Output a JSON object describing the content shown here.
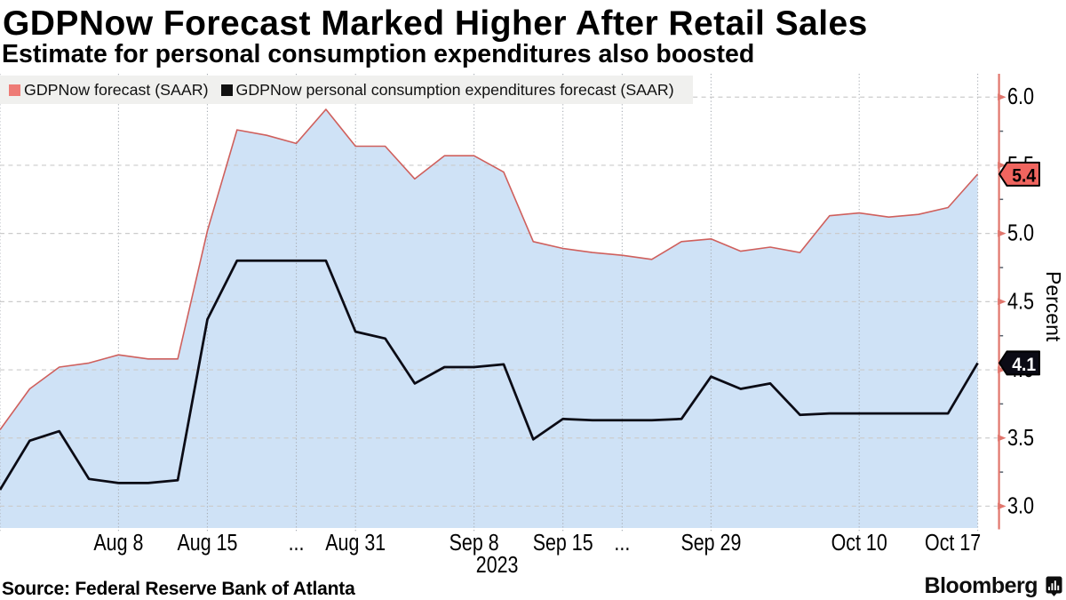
{
  "header": {
    "title": "GDPNow Forecast Marked Higher After Retail Sales",
    "subtitle": "Estimate for personal consumption expenditures also boosted"
  },
  "legend": {
    "items": [
      {
        "label": "GDPNow forecast (SAAR)",
        "color": "#ee7b76"
      },
      {
        "label": "GDPNow personal consumption expenditures forecast (SAAR)",
        "color": "#111111"
      }
    ]
  },
  "chart_data": {
    "type": "area",
    "title": "GDPNow Forecast Marked Higher After Retail Sales",
    "ylabel": "Percent",
    "ylim": [
      2.84,
      6.171
    ],
    "y_major_ticks": [
      3.0,
      3.5,
      4.0,
      4.5,
      5.0,
      5.5,
      6.0
    ],
    "y_tick_labels": [
      "3.0",
      "3.5",
      "4.0",
      "4.5",
      "5.0",
      "5.5",
      "6.0"
    ],
    "y_minor_step": 0.25,
    "x_ticks": [
      {
        "index": 0,
        "label": ""
      },
      {
        "index": 4,
        "label": "Aug 8"
      },
      {
        "index": 7,
        "label": "Aug 15"
      },
      {
        "index": 10,
        "label": "..."
      },
      {
        "index": 12,
        "label": "Aug 31"
      },
      {
        "index": 16,
        "label": "Sep 8"
      },
      {
        "index": 19,
        "label": "Sep 15"
      },
      {
        "index": 21,
        "label": "..."
      },
      {
        "index": 24,
        "label": "Sep 29"
      },
      {
        "index": 29,
        "label": "Oct 10"
      },
      {
        "index": 33,
        "label": "Oct 17"
      }
    ],
    "year_label": {
      "index": 16,
      "label": "2023"
    },
    "series": [
      {
        "name": "GDPNow forecast (SAAR)",
        "type": "area",
        "color": "#cf605d",
        "fill": "#cfe2f6",
        "marker_label": "5.4",
        "marker_fill": "#f0655f",
        "marker_text_color": "#000000",
        "values": [
          3.56,
          3.86,
          4.02,
          4.05,
          4.11,
          4.08,
          4.08,
          5.02,
          5.76,
          5.72,
          5.66,
          5.91,
          5.64,
          5.64,
          5.4,
          5.57,
          5.57,
          5.45,
          4.94,
          4.89,
          4.86,
          4.84,
          4.81,
          4.94,
          4.96,
          4.87,
          4.9,
          4.86,
          5.13,
          5.15,
          5.12,
          5.14,
          5.19,
          5.435
        ]
      },
      {
        "name": "GDPNow personal consumption expenditures forecast (SAAR)",
        "type": "line",
        "color": "#0b0b15",
        "marker_label": "4.1",
        "marker_fill": "#0b0b15",
        "marker_text_color": "#ffffff",
        "values": [
          3.12,
          3.48,
          3.55,
          3.2,
          3.17,
          3.17,
          3.19,
          4.37,
          4.8,
          4.8,
          4.8,
          4.8,
          4.28,
          4.23,
          3.9,
          4.02,
          4.02,
          4.04,
          3.49,
          3.64,
          3.63,
          3.63,
          3.63,
          3.64,
          3.95,
          3.86,
          3.9,
          3.67,
          3.68,
          3.68,
          3.68,
          3.68,
          3.68,
          4.05
        ]
      }
    ]
  },
  "axis": {
    "color": "#e1766d",
    "grid_color": "#cbcbcb"
  },
  "footer": {
    "source": "Source: Federal Reserve Bank of Atlanta",
    "brand": "Bloomberg"
  }
}
